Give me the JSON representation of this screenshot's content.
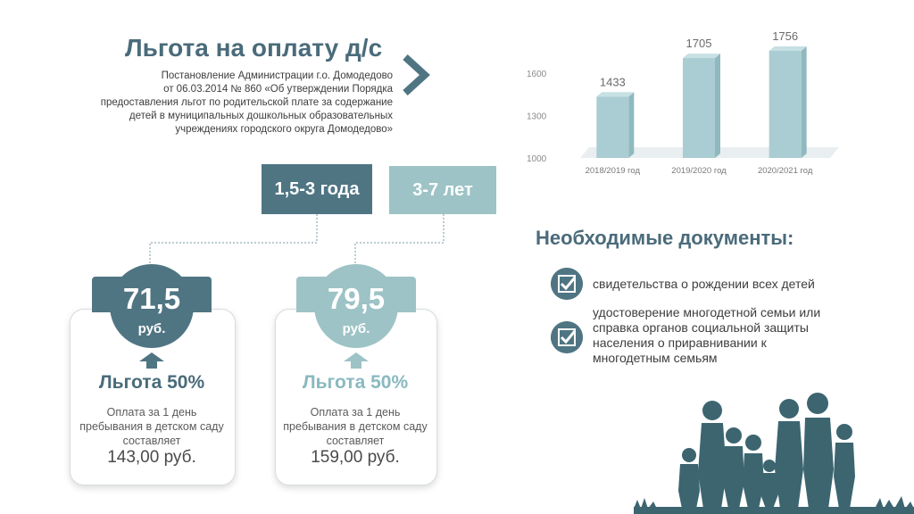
{
  "header": {
    "title": "Льгота на оплату д/с",
    "decree_lines": [
      "Постановление Администрации г.о. Домодедово",
      "от 06.03.2014 № 860 «Об утверждении Порядка",
      "предоставления льгот по родительской плате за содержание",
      "детей в муниципальных дошкольных образовательных",
      "учреждениях городского округа Домодедово»"
    ],
    "arrow_icon": "chevron-right-icon"
  },
  "age_groups": [
    {
      "label": "1,5-3 года",
      "price": "71,5",
      "currency": "руб.",
      "discount": "Льгота 50%",
      "desc_lines": [
        "Оплата за 1 день",
        "пребывания в детском саду",
        "составляет"
      ],
      "full_price": "143,00 руб.",
      "color": "#4f7583"
    },
    {
      "label": "3-7 лет",
      "price": "79,5",
      "currency": "руб.",
      "discount": "Льгота 50%",
      "desc_lines": [
        "Оплата за 1 день",
        "пребывания в детском саду",
        "составляет"
      ],
      "full_price": "159,00 руб.",
      "color": "#9dc3c6"
    }
  ],
  "chart_data": {
    "type": "bar",
    "categories": [
      "2018/2019  год",
      "2019/2020  год",
      "2020/2021  год"
    ],
    "values": [
      1433,
      1705,
      1756
    ],
    "data_labels": [
      "1433",
      "1705",
      "1756"
    ],
    "y_ticks": [
      1000,
      1300,
      1600
    ],
    "y_tick_labels": [
      "1000",
      "1300",
      "1600"
    ],
    "ylim": [
      1000,
      1800
    ],
    "grid": false,
    "bar_color": "#a9cdd2",
    "title": "",
    "xlabel": "",
    "ylabel": ""
  },
  "documents": {
    "title": "Необходимые документы:",
    "items": [
      {
        "icon": "checkbox-icon",
        "lines": [
          "свидетельства о рождении всех детей"
        ]
      },
      {
        "icon": "checkbox-icon",
        "lines": [
          "удостоверение многодетной семьи или",
          "справка органов социальной защиты",
          "населения о приравнивании к",
          "многодетным семьям"
        ]
      }
    ]
  },
  "illustration": {
    "icon": "family-silhouette-icon",
    "color": "#3c6570"
  }
}
